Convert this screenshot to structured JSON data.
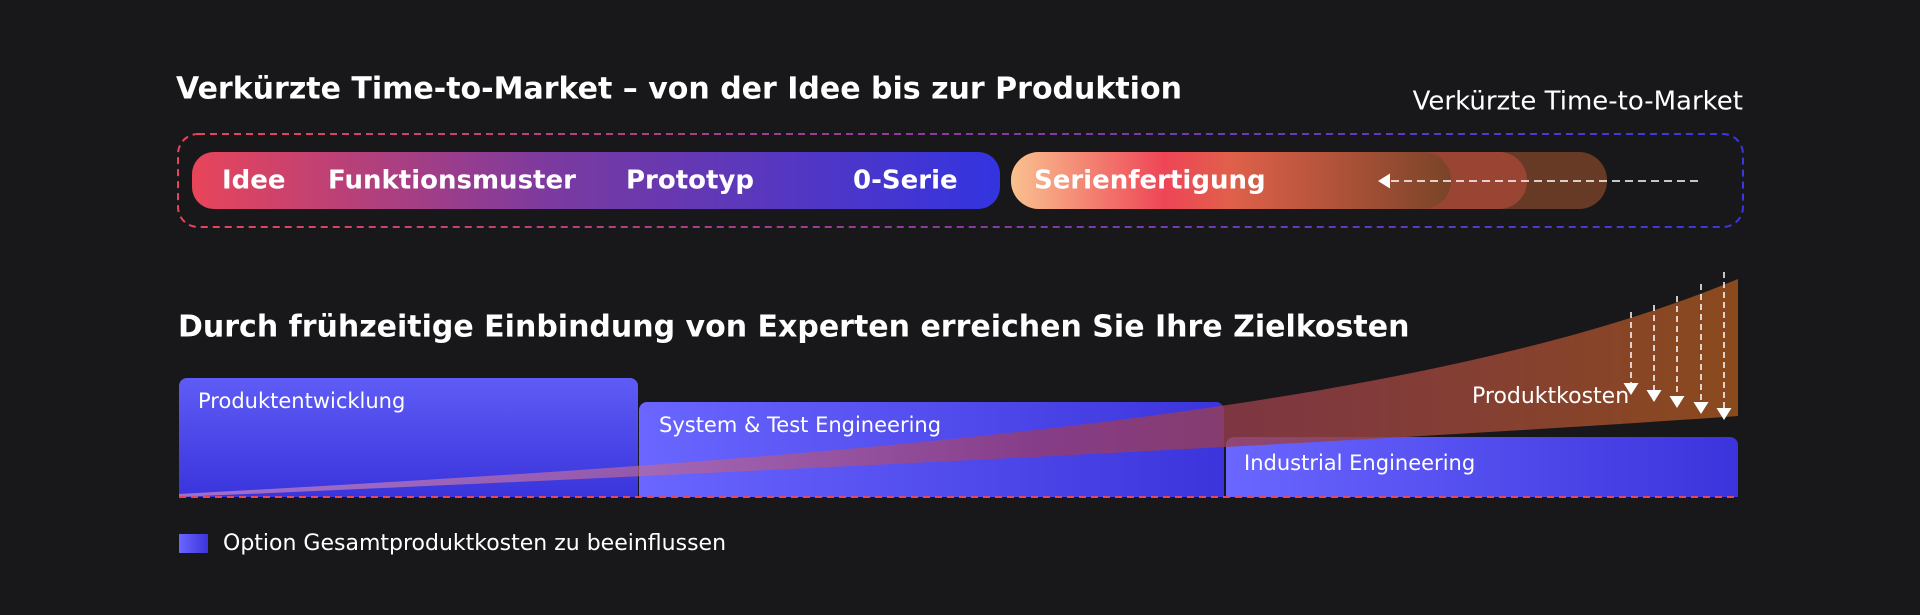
{
  "top": {
    "title": "Verkürzte Time-to-Market – von der Idee bis zur Produktion",
    "label": "Verkürzte Time-to-Market",
    "phases": [
      "Idee",
      "Funktionsmuster",
      "Prototyp",
      "0-Serie"
    ],
    "production": "Serienfertigung"
  },
  "bottom": {
    "title": "Durch frühzeitige Einbindung von Experten erreichen Sie Ihre Zielkosten",
    "blocks": [
      "Produktentwicklung",
      "System & Test Engineering",
      "Industrial Engineering"
    ],
    "cost_label": "Produktkosten"
  },
  "legend": {
    "label": "Option Gesamtproduktkosten zu beeinflussen"
  }
}
